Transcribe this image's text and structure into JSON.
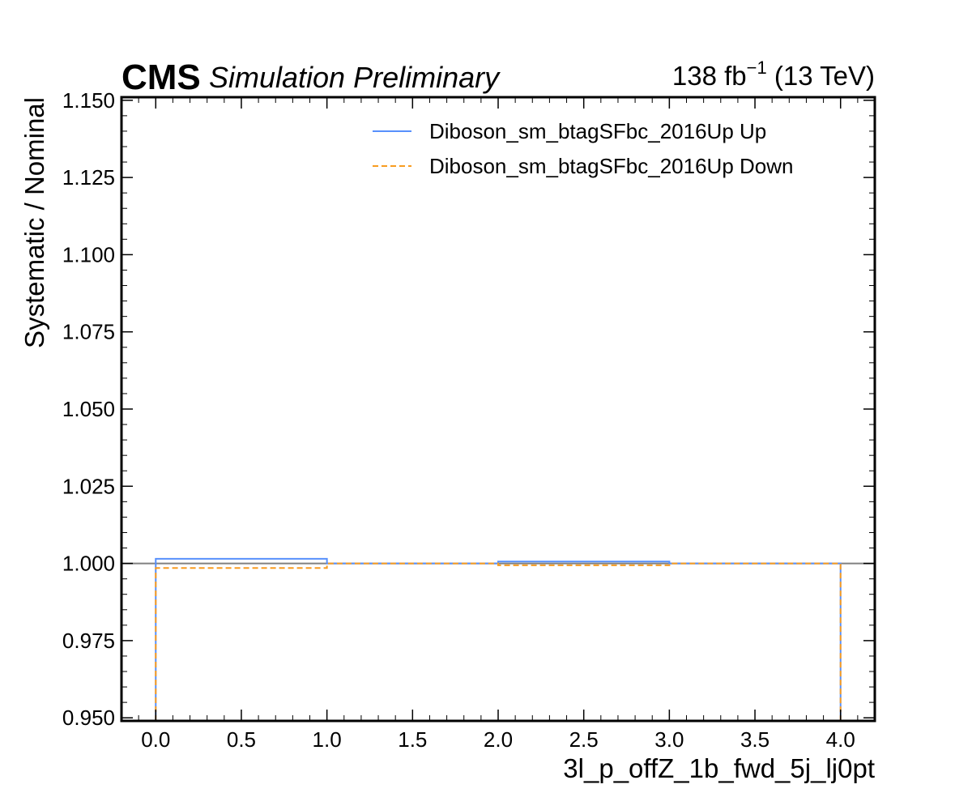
{
  "header": {
    "experiment": "CMS",
    "status": "Simulation Preliminary",
    "lumi_value": "138 fb",
    "lumi_exponent": "−1",
    "lumi_energy": " (13 TeV)"
  },
  "chart_data": {
    "type": "line",
    "drawstyle": "steps",
    "xlabel": "3l_p_offZ_1b_fwd_5j_lj0pt",
    "ylabel": "Systematic / Nominal",
    "xlim": [
      -0.2,
      4.2
    ],
    "ylim": [
      0.949,
      1.151
    ],
    "xticks": [
      0.0,
      0.5,
      1.0,
      1.5,
      2.0,
      2.5,
      3.0,
      3.5,
      4.0
    ],
    "xtick_labels": [
      "0.0",
      "0.5",
      "1.0",
      "1.5",
      "2.0",
      "2.5",
      "3.0",
      "3.5",
      "4.0"
    ],
    "yticks": [
      0.95,
      0.975,
      1.0,
      1.025,
      1.05,
      1.075,
      1.1,
      1.125,
      1.15
    ],
    "ytick_labels": [
      "0.950",
      "0.975",
      "1.000",
      "1.025",
      "1.050",
      "1.075",
      "1.100",
      "1.125",
      "1.150"
    ],
    "reference_line": 1.0,
    "bin_edges": [
      0,
      1,
      2,
      3,
      4
    ],
    "legend_position": "top-right",
    "series": [
      {
        "name": "Diboson_sm_btagSFbc_2016Up Up",
        "color": "#5790fc",
        "linestyle": "solid",
        "values": [
          1.0015,
          1.0,
          1.0006,
          1.0
        ]
      },
      {
        "name": "Diboson_sm_btagSFbc_2016Up Down",
        "color": "#f89c20",
        "linestyle": "dashed",
        "values": [
          0.9985,
          1.0,
          0.9994,
          1.0
        ]
      }
    ]
  }
}
